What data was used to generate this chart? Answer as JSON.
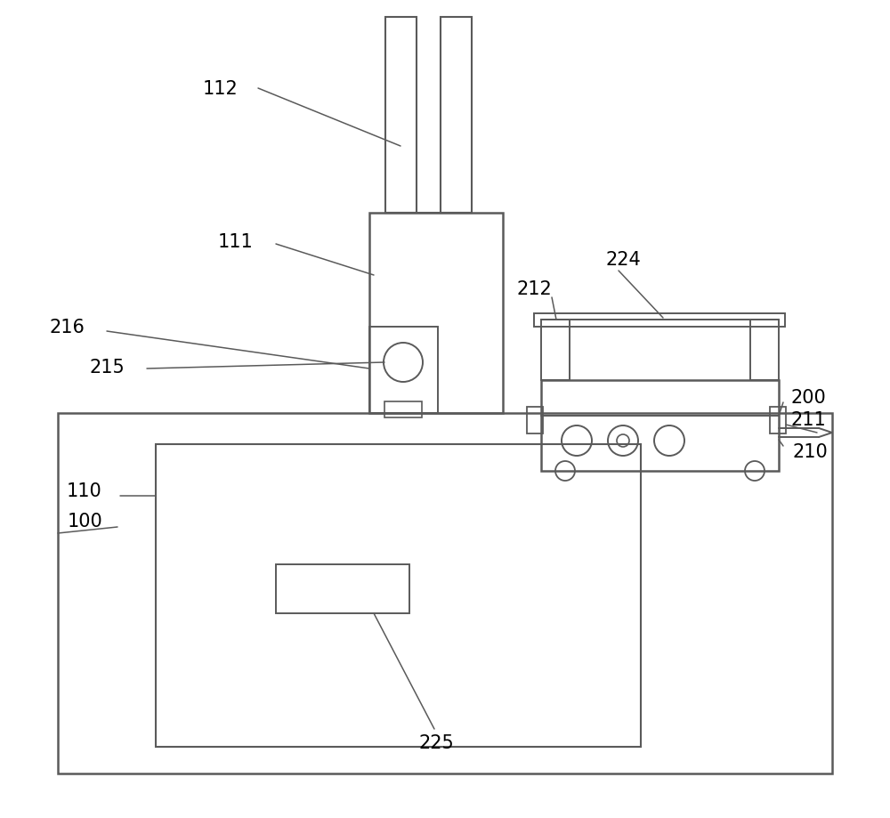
{
  "bg_color": "#ffffff",
  "line_color": "#5a5a5a",
  "line_width": 1.4,
  "label_color": "#000000",
  "label_fontsize": 15
}
